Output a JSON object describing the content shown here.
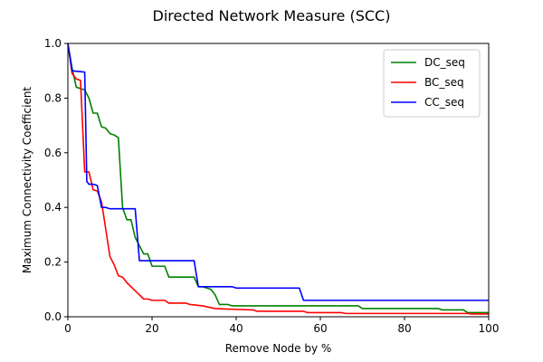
{
  "chart_data": {
    "type": "line",
    "title": "Directed Network Measure (SCC)",
    "xlabel": "Remove Node by %",
    "ylabel": "Maximum Connectivity Coefficient",
    "xlim": [
      0,
      100
    ],
    "ylim": [
      0,
      1.0
    ],
    "xticks": [
      "0",
      "20",
      "40",
      "60",
      "80",
      "100"
    ],
    "yticks": [
      "0.0",
      "0.2",
      "0.4",
      "0.6",
      "0.8",
      "1.0"
    ],
    "grid": false,
    "legend_position": "top-right",
    "series": [
      {
        "name": "DC_seq",
        "color": "#008000",
        "points": [
          [
            0,
            1.0
          ],
          [
            1,
            0.91
          ],
          [
            2,
            0.84
          ],
          [
            3,
            0.835
          ],
          [
            4,
            0.83
          ],
          [
            5,
            0.8
          ],
          [
            6,
            0.745
          ],
          [
            7,
            0.745
          ],
          [
            8,
            0.695
          ],
          [
            9,
            0.69
          ],
          [
            10,
            0.67
          ],
          [
            11,
            0.665
          ],
          [
            12,
            0.655
          ],
          [
            13,
            0.4
          ],
          [
            14,
            0.355
          ],
          [
            15,
            0.355
          ],
          [
            16,
            0.29
          ],
          [
            17,
            0.26
          ],
          [
            18,
            0.23
          ],
          [
            19,
            0.23
          ],
          [
            20,
            0.185
          ],
          [
            22,
            0.185
          ],
          [
            23,
            0.185
          ],
          [
            24,
            0.145
          ],
          [
            30,
            0.145
          ],
          [
            31,
            0.11
          ],
          [
            32,
            0.11
          ],
          [
            34,
            0.1
          ],
          [
            35,
            0.08
          ],
          [
            36,
            0.045
          ],
          [
            38,
            0.045
          ],
          [
            39,
            0.04
          ],
          [
            50,
            0.04
          ],
          [
            60,
            0.04
          ],
          [
            69,
            0.04
          ],
          [
            70,
            0.03
          ],
          [
            88,
            0.03
          ],
          [
            89,
            0.025
          ],
          [
            94,
            0.025
          ],
          [
            95,
            0.015
          ],
          [
            100,
            0.015
          ]
        ]
      },
      {
        "name": "BC_seq",
        "color": "#ff0000",
        "points": [
          [
            0,
            1.0
          ],
          [
            1,
            0.89
          ],
          [
            2,
            0.87
          ],
          [
            3,
            0.865
          ],
          [
            4,
            0.53
          ],
          [
            5,
            0.53
          ],
          [
            6,
            0.465
          ],
          [
            7,
            0.46
          ],
          [
            8,
            0.42
          ],
          [
            9,
            0.32
          ],
          [
            10,
            0.22
          ],
          [
            11,
            0.19
          ],
          [
            12,
            0.15
          ],
          [
            13,
            0.145
          ],
          [
            14,
            0.125
          ],
          [
            15,
            0.11
          ],
          [
            16,
            0.095
          ],
          [
            17,
            0.08
          ],
          [
            18,
            0.065
          ],
          [
            19,
            0.065
          ],
          [
            20,
            0.06
          ],
          [
            23,
            0.06
          ],
          [
            24,
            0.05
          ],
          [
            28,
            0.05
          ],
          [
            29,
            0.045
          ],
          [
            32,
            0.04
          ],
          [
            35,
            0.03
          ],
          [
            38,
            0.028
          ],
          [
            44,
            0.025
          ],
          [
            45,
            0.02
          ],
          [
            56,
            0.02
          ],
          [
            57,
            0.015
          ],
          [
            65,
            0.015
          ],
          [
            66,
            0.012
          ],
          [
            95,
            0.012
          ],
          [
            96,
            0.01
          ],
          [
            100,
            0.01
          ]
        ]
      },
      {
        "name": "CC_seq",
        "color": "#0000ff",
        "points": [
          [
            0,
            1.0
          ],
          [
            1,
            0.9
          ],
          [
            4,
            0.895
          ],
          [
            4.5,
            0.495
          ],
          [
            5,
            0.485
          ],
          [
            6,
            0.485
          ],
          [
            7,
            0.48
          ],
          [
            8,
            0.4
          ],
          [
            9,
            0.4
          ],
          [
            10,
            0.395
          ],
          [
            16,
            0.395
          ],
          [
            17,
            0.205
          ],
          [
            29,
            0.205
          ],
          [
            30,
            0.205
          ],
          [
            31,
            0.11
          ],
          [
            39,
            0.11
          ],
          [
            40,
            0.105
          ],
          [
            55,
            0.105
          ],
          [
            56,
            0.06
          ],
          [
            100,
            0.06
          ]
        ]
      }
    ]
  }
}
